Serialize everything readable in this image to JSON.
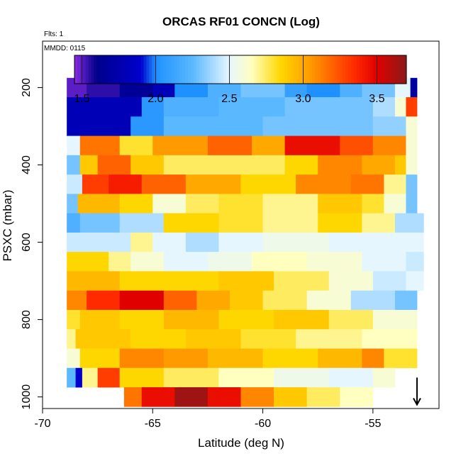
{
  "chart_data": {
    "type": "heatmap",
    "title": "ORCAS RF01 CONCN (Log)",
    "flights_label": "Flts: 1",
    "date_label": "MMDD: 0115",
    "xlabel": "Latitude (deg N)",
    "ylabel": "PSXC (mbar)",
    "xlim": [
      -70,
      -52
    ],
    "ylim": [
      1030,
      80
    ],
    "x_ticks": [
      -70,
      -65,
      -60,
      -55
    ],
    "y_ticks": [
      200,
      400,
      600,
      800,
      1000
    ],
    "colorbar": {
      "range": [
        1.45,
        3.7
      ],
      "ticks": [
        1.5,
        2.0,
        2.5,
        3.0,
        3.5
      ],
      "tick_labels": [
        "1.5",
        "2.0",
        "2.5",
        "3.0",
        "3.5"
      ],
      "stops": [
        {
          "v": 1.45,
          "color": "#8a2be2"
        },
        {
          "v": 1.6,
          "color": "#00008b"
        },
        {
          "v": 1.9,
          "color": "#0000cd"
        },
        {
          "v": 2.0,
          "color": "#1e90ff"
        },
        {
          "v": 2.25,
          "color": "#5ab8ff"
        },
        {
          "v": 2.5,
          "color": "#e6f6ff"
        },
        {
          "v": 2.65,
          "color": "#ffffc0"
        },
        {
          "v": 2.85,
          "color": "#ffd700"
        },
        {
          "v": 3.05,
          "color": "#ff9a00"
        },
        {
          "v": 3.35,
          "color": "#ff2a00"
        },
        {
          "v": 3.5,
          "color": "#e00000"
        },
        {
          "v": 3.7,
          "color": "#8b1a1a"
        }
      ]
    },
    "rows": [
      {
        "p": 200,
        "cells": [
          [
            -68.9,
            -68.0,
            1.5
          ],
          [
            -68.0,
            -66.5,
            1.55
          ],
          [
            -66.5,
            -65.0,
            1.65
          ],
          [
            -65.0,
            -64.0,
            1.8
          ],
          [
            -64.0,
            -62.5,
            2.0
          ],
          [
            -62.5,
            -61.0,
            2.2
          ],
          [
            -61.0,
            -59.0,
            2.3
          ],
          [
            -59.0,
            -58.0,
            2.1
          ],
          [
            -58.0,
            -56.5,
            2.0
          ],
          [
            -56.5,
            -55.5,
            2.2
          ],
          [
            -55.5,
            -54.0,
            2.3
          ],
          [
            -54.0,
            -53.3,
            2.5
          ],
          [
            -53.3,
            -53.0,
            1.7
          ]
        ]
      },
      {
        "p": 250,
        "cells": [
          [
            -68.9,
            -65.5,
            1.8
          ],
          [
            -65.5,
            -64.5,
            2.05
          ],
          [
            -64.5,
            -62.0,
            2.2
          ],
          [
            -62.0,
            -59.0,
            2.25
          ],
          [
            -59.0,
            -55.0,
            2.3
          ],
          [
            -55.0,
            -54.0,
            2.4
          ],
          [
            -54.0,
            -53.5,
            2.6
          ],
          [
            -53.5,
            -53.0,
            3.3
          ]
        ]
      },
      {
        "p": 300,
        "cells": [
          [
            -68.9,
            -66.0,
            1.8
          ],
          [
            -66.0,
            -64.5,
            2.05
          ],
          [
            -64.5,
            -60.0,
            2.25
          ],
          [
            -60.0,
            -55.0,
            2.3
          ],
          [
            -55.0,
            -53.5,
            2.35
          ],
          [
            -53.5,
            -53.0,
            2.6
          ]
        ]
      },
      {
        "p": 350,
        "cells": [
          [
            -68.9,
            -68.3,
            2.5
          ],
          [
            -68.3,
            -66.5,
            3.15
          ],
          [
            -66.5,
            -65.0,
            2.8
          ],
          [
            -65.0,
            -62.5,
            3.05
          ],
          [
            -62.5,
            -60.5,
            3.2
          ],
          [
            -60.5,
            -59.0,
            3.0
          ],
          [
            -59.0,
            -56.5,
            3.45
          ],
          [
            -56.5,
            -55.0,
            3.25
          ],
          [
            -55.0,
            -53.5,
            3.1
          ],
          [
            -53.5,
            -53.0,
            2.6
          ]
        ]
      },
      {
        "p": 400,
        "cells": [
          [
            -68.9,
            -68.3,
            2.3
          ],
          [
            -68.3,
            -67.5,
            2.9
          ],
          [
            -67.5,
            -66.0,
            3.2
          ],
          [
            -66.0,
            -64.5,
            2.9
          ],
          [
            -64.5,
            -62.0,
            2.75
          ],
          [
            -62.0,
            -59.0,
            2.75
          ],
          [
            -59.0,
            -57.5,
            2.85
          ],
          [
            -57.5,
            -55.5,
            3.1
          ],
          [
            -55.5,
            -54.0,
            3.0
          ],
          [
            -54.0,
            -53.5,
            2.9
          ],
          [
            -53.5,
            -53.0,
            2.6
          ]
        ]
      },
      {
        "p": 450,
        "cells": [
          [
            -68.9,
            -68.2,
            2.45
          ],
          [
            -68.2,
            -67.0,
            3.3
          ],
          [
            -67.0,
            -65.5,
            3.4
          ],
          [
            -65.5,
            -63.5,
            3.2
          ],
          [
            -63.5,
            -61.0,
            3.0
          ],
          [
            -61.0,
            -58.5,
            2.85
          ],
          [
            -58.5,
            -56.0,
            3.1
          ],
          [
            -56.0,
            -54.5,
            3.15
          ],
          [
            -54.5,
            -53.5,
            2.7
          ],
          [
            -53.5,
            -53.0,
            2.3
          ]
        ]
      },
      {
        "p": 500,
        "cells": [
          [
            -68.9,
            -68.4,
            2.3
          ],
          [
            -68.4,
            -66.5,
            2.95
          ],
          [
            -66.5,
            -65.0,
            2.85
          ],
          [
            -65.0,
            -63.5,
            2.6
          ],
          [
            -63.5,
            -62.0,
            2.75
          ],
          [
            -62.0,
            -60.0,
            2.8
          ],
          [
            -60.0,
            -57.5,
            2.7
          ],
          [
            -57.5,
            -55.5,
            2.9
          ],
          [
            -55.5,
            -54.5,
            2.8
          ],
          [
            -54.5,
            -53.5,
            2.6
          ],
          [
            -53.5,
            -53.0,
            2.3
          ]
        ]
      },
      {
        "p": 550,
        "cells": [
          [
            -68.9,
            -68.3,
            2.2
          ],
          [
            -68.3,
            -66.5,
            2.3
          ],
          [
            -66.5,
            -64.5,
            2.4
          ],
          [
            -64.5,
            -62.0,
            2.85
          ],
          [
            -62.0,
            -60.0,
            2.8
          ],
          [
            -60.0,
            -57.5,
            2.7
          ],
          [
            -57.5,
            -55.5,
            2.85
          ],
          [
            -55.5,
            -54.0,
            2.7
          ],
          [
            -54.0,
            -52.7,
            2.4
          ]
        ]
      },
      {
        "p": 600,
        "cells": [
          [
            -68.9,
            -66.0,
            2.45
          ],
          [
            -66.0,
            -65.0,
            2.7
          ],
          [
            -65.0,
            -63.5,
            2.5
          ],
          [
            -63.5,
            -62.0,
            2.4
          ],
          [
            -62.0,
            -60.0,
            2.5
          ],
          [
            -60.0,
            -57.0,
            2.55
          ],
          [
            -57.0,
            -55.0,
            2.5
          ],
          [
            -55.0,
            -52.7,
            2.5
          ]
        ]
      },
      {
        "p": 650,
        "cells": [
          [
            -68.9,
            -67.0,
            2.85
          ],
          [
            -67.0,
            -66.0,
            2.7
          ],
          [
            -66.0,
            -64.5,
            2.6
          ],
          [
            -64.5,
            -62.5,
            2.5
          ],
          [
            -62.5,
            -60.5,
            2.55
          ],
          [
            -60.5,
            -58.0,
            2.65
          ],
          [
            -58.0,
            -55.5,
            2.6
          ],
          [
            -55.5,
            -53.5,
            2.5
          ],
          [
            -53.5,
            -52.7,
            2.45
          ]
        ]
      },
      {
        "p": 700,
        "cells": [
          [
            -68.9,
            -66.5,
            2.95
          ],
          [
            -66.5,
            -64.5,
            2.85
          ],
          [
            -64.5,
            -62.0,
            2.85
          ],
          [
            -62.0,
            -59.5,
            2.9
          ],
          [
            -59.5,
            -57.0,
            2.75
          ],
          [
            -57.0,
            -55.0,
            2.6
          ],
          [
            -55.0,
            -53.5,
            2.45
          ],
          [
            -53.5,
            -52.7,
            2.5
          ]
        ]
      },
      {
        "p": 750,
        "cells": [
          [
            -68.9,
            -68.0,
            3.1
          ],
          [
            -68.0,
            -66.5,
            3.35
          ],
          [
            -66.5,
            -64.5,
            3.5
          ],
          [
            -64.5,
            -63.0,
            3.2
          ],
          [
            -63.0,
            -61.5,
            3.0
          ],
          [
            -61.5,
            -60.0,
            2.9
          ],
          [
            -60.0,
            -58.0,
            2.75
          ],
          [
            -58.0,
            -56.0,
            2.6
          ],
          [
            -56.0,
            -54.0,
            2.4
          ],
          [
            -54.0,
            -53.0,
            2.3
          ]
        ]
      },
      {
        "p": 800,
        "cells": [
          [
            -68.9,
            -68.3,
            2.8
          ],
          [
            -68.3,
            -66.5,
            2.9
          ],
          [
            -66.5,
            -64.5,
            2.85
          ],
          [
            -64.5,
            -62.0,
            2.95
          ],
          [
            -62.0,
            -59.5,
            2.85
          ],
          [
            -59.5,
            -57.0,
            2.9
          ],
          [
            -57.0,
            -55.0,
            2.75
          ],
          [
            -55.0,
            -53.0,
            2.6
          ]
        ]
      },
      {
        "p": 850,
        "cells": [
          [
            -68.9,
            -68.5,
            2.7
          ],
          [
            -68.5,
            -66.0,
            2.9
          ],
          [
            -66.0,
            -63.5,
            2.85
          ],
          [
            -63.5,
            -61.0,
            2.9
          ],
          [
            -61.0,
            -58.5,
            2.8
          ],
          [
            -58.5,
            -55.5,
            2.7
          ],
          [
            -55.5,
            -53.0,
            2.65
          ]
        ]
      },
      {
        "p": 900,
        "cells": [
          [
            -68.9,
            -68.3,
            2.6
          ],
          [
            -68.3,
            -66.5,
            2.85
          ],
          [
            -66.5,
            -64.5,
            3.1
          ],
          [
            -64.5,
            -62.5,
            3.05
          ],
          [
            -62.5,
            -60.0,
            2.95
          ],
          [
            -60.0,
            -57.5,
            2.85
          ],
          [
            -57.5,
            -55.5,
            2.95
          ],
          [
            -55.5,
            -54.5,
            3.1
          ],
          [
            -54.5,
            -53.0,
            2.8
          ]
        ]
      },
      {
        "p": 950,
        "cells": [
          [
            -68.9,
            -68.5,
            2.25
          ],
          [
            -68.5,
            -68.2,
            1.9
          ],
          [
            -68.2,
            -67.5,
            2.7
          ],
          [
            -67.5,
            -66.5,
            3.3
          ],
          [
            -66.5,
            -64.5,
            2.85
          ],
          [
            -64.5,
            -62.0,
            2.75
          ],
          [
            -62.0,
            -59.5,
            2.65
          ],
          [
            -59.5,
            -57.0,
            2.55
          ],
          [
            -57.0,
            -55.0,
            2.5
          ],
          [
            -55.0,
            -54.0,
            2.6
          ]
        ]
      },
      {
        "p": 1000,
        "cells": [
          [
            -66.3,
            -65.5,
            3.15
          ],
          [
            -65.5,
            -64.0,
            3.45
          ],
          [
            -64.0,
            -62.5,
            3.65
          ],
          [
            -62.5,
            -61.0,
            3.45
          ],
          [
            -61.0,
            -59.5,
            3.1
          ],
          [
            -59.5,
            -58.0,
            2.9
          ],
          [
            -58.0,
            -56.5,
            2.75
          ],
          [
            -56.5,
            -55.0,
            2.65
          ]
        ]
      }
    ],
    "marker_arrow": {
      "x": -53.0,
      "y_top": 950,
      "y_bottom": 1020
    }
  }
}
